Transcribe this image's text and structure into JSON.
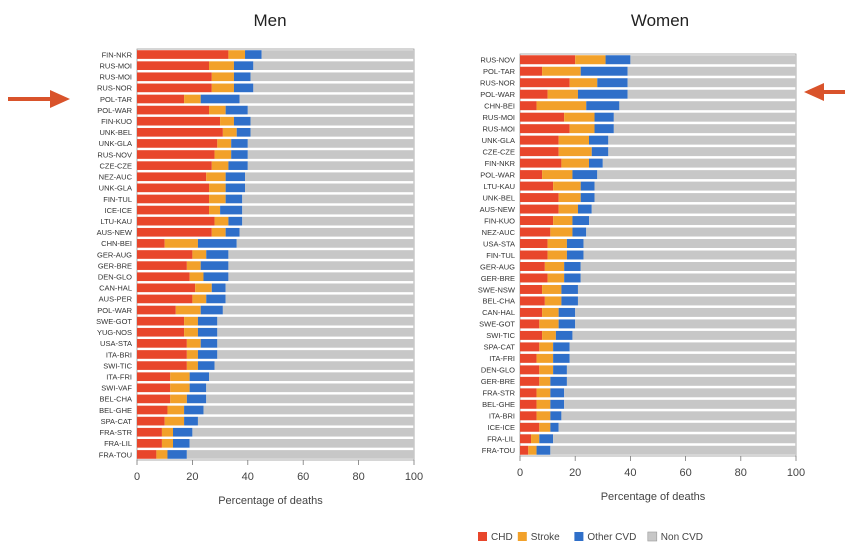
{
  "figure": {
    "title": "",
    "arrow_color": "#d9532b"
  },
  "legend": {
    "items": [
      {
        "label": "CHD",
        "color": "#e8462b"
      },
      {
        "label": "Stroke",
        "color": "#f2a12a"
      },
      {
        "label": "Other CVD",
        "color": "#2f6fc9"
      },
      {
        "label": "Non CVD",
        "color": "#c7c7c7"
      }
    ]
  },
  "chart_data": [
    {
      "type": "bar",
      "orientation": "horizontal",
      "stacked": true,
      "title": "Men",
      "xlabel": "Percentage of deaths",
      "xlim": [
        0,
        100
      ],
      "xticks": [
        0,
        20,
        40,
        60,
        80,
        100
      ],
      "grid": false,
      "categories": [
        "FIN-NKR",
        "RUS-MOI",
        "RUS-MOI",
        "RUS-NOR",
        "POL-TAR",
        "POL-WAR",
        "FIN-KUO",
        "UNK-BEL",
        "UNK-GLA",
        "RUS-NOV",
        "CZE-CZE",
        "NEZ-AUC",
        "UNK-GLA",
        "FIN-TUL",
        "ICE-ICE",
        "LTU-KAU",
        "AUS-NEW",
        "CHN-BEI",
        "GER-AUG",
        "GER-BRE",
        "DEN-GLO",
        "CAN-HAL",
        "AUS-PER",
        "POL-WAR",
        "SWE-GOT",
        "YUG-NOS",
        "USA-STA",
        "ITA-BRI",
        "SWI-TIC",
        "ITA-FRI",
        "SWI-VAF",
        "BEL-CHA",
        "BEL-GHE",
        "SPA-CAT",
        "FRA-STR",
        "FRA-LIL",
        "FRA-TOU"
      ],
      "series": [
        {
          "name": "CHD",
          "color": "#e8462b",
          "values": [
            33,
            26,
            27,
            27,
            17,
            26,
            30,
            31,
            29,
            28,
            27,
            25,
            26,
            26,
            26,
            28,
            27,
            10,
            20,
            18,
            19,
            21,
            20,
            14,
            17,
            17,
            18,
            18,
            18,
            12,
            12,
            12,
            11,
            10,
            9,
            9,
            7
          ]
        },
        {
          "name": "Stroke",
          "color": "#f2a12a",
          "values": [
            6,
            9,
            8,
            8,
            6,
            6,
            5,
            5,
            5,
            6,
            6,
            7,
            6,
            6,
            4,
            5,
            5,
            12,
            5,
            5,
            5,
            6,
            5,
            9,
            5,
            5,
            5,
            4,
            4,
            7,
            7,
            6,
            6,
            7,
            4,
            4,
            4
          ]
        },
        {
          "name": "Other CVD",
          "color": "#2f6fc9",
          "values": [
            6,
            7,
            6,
            7,
            14,
            8,
            6,
            5,
            6,
            6,
            7,
            7,
            7,
            6,
            8,
            5,
            5,
            14,
            8,
            10,
            9,
            5,
            7,
            8,
            7,
            7,
            6,
            7,
            6,
            7,
            6,
            7,
            7,
            5,
            7,
            6,
            7
          ]
        },
        {
          "name": "Non CVD",
          "color": "#c7c7c7",
          "values": [
            55,
            58,
            59,
            58,
            63,
            60,
            59,
            59,
            60,
            60,
            60,
            61,
            61,
            62,
            62,
            62,
            63,
            64,
            67,
            67,
            67,
            68,
            68,
            69,
            71,
            71,
            71,
            71,
            72,
            74,
            75,
            75,
            76,
            78,
            80,
            81,
            82
          ]
        }
      ]
    },
    {
      "type": "bar",
      "orientation": "horizontal",
      "stacked": true,
      "title": "Women",
      "xlabel": "Percentage of deaths",
      "xlim": [
        0,
        100
      ],
      "xticks": [
        0,
        20,
        40,
        60,
        80,
        100
      ],
      "grid": false,
      "categories": [
        "RUS-NOV",
        "POL-TAR",
        "RUS-NOR",
        "POL-WAR",
        "CHN-BEI",
        "RUS-MOI",
        "RUS-MOI",
        "UNK-GLA",
        "CZE-CZE",
        "FIN-NKR",
        "POL-WAR",
        "LTU-KAU",
        "UNK-BEL",
        "AUS-NEW",
        "FIN-KUO",
        "NEZ-AUC",
        "USA-STA",
        "FIN-TUL",
        "GER-AUG",
        "GER-BRE",
        "SWE-NSW",
        "BEL-CHA",
        "CAN-HAL",
        "SWE-GOT",
        "SWI-TIC",
        "SPA-CAT",
        "ITA-FRI",
        "DEN-GLO",
        "GER-BRE",
        "FRA-STR",
        "BEL-GHE",
        "ITA-BRI",
        "ICE-ICE",
        "FRA-LIL",
        "FRA-TOU"
      ],
      "series": [
        {
          "name": "CHD",
          "color": "#e8462b",
          "values": [
            20,
            8,
            18,
            10,
            6,
            16,
            18,
            14,
            14,
            15,
            8,
            12,
            14,
            14,
            12,
            11,
            10,
            10,
            9,
            10,
            8,
            9,
            8,
            7,
            8,
            7,
            6,
            7,
            7,
            6,
            6,
            6,
            7,
            4,
            3
          ]
        },
        {
          "name": "Stroke",
          "color": "#f2a12a",
          "values": [
            11,
            14,
            10,
            11,
            18,
            11,
            9,
            11,
            12,
            10,
            11,
            10,
            8,
            7,
            7,
            8,
            7,
            7,
            7,
            6,
            7,
            6,
            6,
            7,
            5,
            5,
            6,
            5,
            4,
            5,
            5,
            5,
            4,
            3,
            3
          ]
        },
        {
          "name": "Other CVD",
          "color": "#2f6fc9",
          "values": [
            9,
            17,
            11,
            18,
            12,
            7,
            7,
            7,
            6,
            5,
            9,
            5,
            5,
            5,
            6,
            5,
            6,
            6,
            6,
            6,
            6,
            6,
            6,
            6,
            6,
            6,
            6,
            5,
            6,
            5,
            5,
            4,
            3,
            5,
            5
          ]
        },
        {
          "name": "Non CVD",
          "color": "#c7c7c7",
          "values": [
            60,
            61,
            61,
            61,
            64,
            66,
            66,
            68,
            68,
            70,
            72,
            73,
            73,
            74,
            75,
            76,
            77,
            77,
            78,
            78,
            79,
            79,
            80,
            80,
            81,
            82,
            82,
            83,
            83,
            84,
            84,
            85,
            86,
            88,
            89
          ]
        }
      ]
    }
  ]
}
